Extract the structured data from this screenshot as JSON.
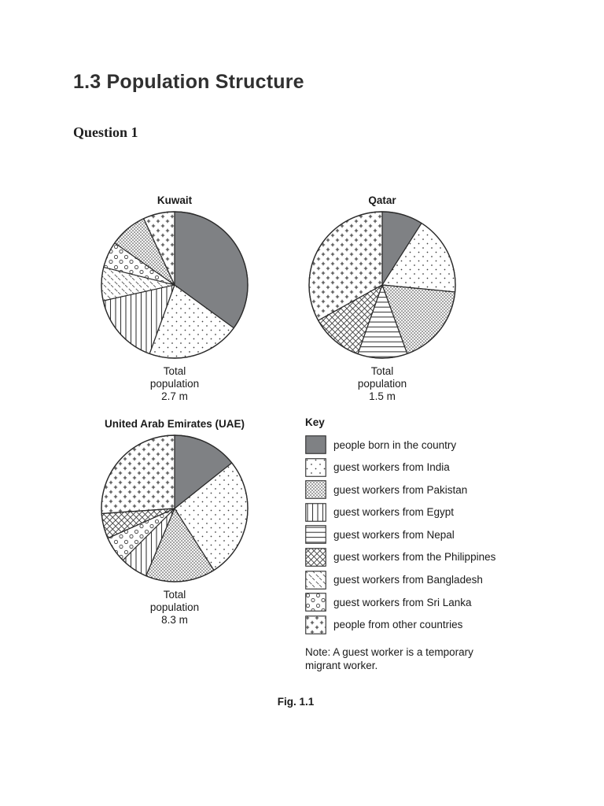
{
  "page": {
    "section_title": "1.3 Population Structure",
    "question_label": "Question 1",
    "figure_label": "Fig. 1.1"
  },
  "colors": {
    "native_fill": "#7f8184",
    "ink": "#2b2b2b",
    "background": "#ffffff"
  },
  "key": {
    "title": "Key",
    "items": [
      {
        "label": "people born in the country",
        "pattern": "solid-gray"
      },
      {
        "label": "guest workers from India",
        "pattern": "dots-sparse"
      },
      {
        "label": "guest workers from Pakistan",
        "pattern": "dashes-dense"
      },
      {
        "label": "guest workers from Egypt",
        "pattern": "vertical-lines"
      },
      {
        "label": "guest workers from Nepal",
        "pattern": "horizontal-lines"
      },
      {
        "label": "guest workers from the Philippines",
        "pattern": "crosshatch"
      },
      {
        "label": "guest workers from Bangladesh",
        "pattern": "diagonal-lines"
      },
      {
        "label": "guest workers from Sri Lanka",
        "pattern": "circles"
      },
      {
        "label": "people from other countries",
        "pattern": "plus-signs"
      }
    ],
    "note": "Note: A guest worker is a temporary migrant worker."
  },
  "chart_data": [
    {
      "type": "pie",
      "title": "Kuwait",
      "total_caption": [
        "Total",
        "population",
        "2.7 m"
      ],
      "total_population_millions": 2.7,
      "start_angle_deg": 0,
      "direction": "clockwise",
      "segments": [
        {
          "label": "people born in the country",
          "pattern": "solid-gray",
          "degrees": 126,
          "percent": 35
        },
        {
          "label": "guest workers from India",
          "pattern": "dots-sparse",
          "degrees": 74,
          "percent": 20.5
        },
        {
          "label": "guest workers from Egypt",
          "pattern": "vertical-lines",
          "degrees": 57.5,
          "percent": 16
        },
        {
          "label": "guest workers from Bangladesh",
          "pattern": "diagonal-lines",
          "degrees": 26.5,
          "percent": 7.5
        },
        {
          "label": "guest workers from Sri Lanka",
          "pattern": "circles",
          "degrees": 21,
          "percent": 6
        },
        {
          "label": "guest workers from Pakistan",
          "pattern": "dashes-dense",
          "degrees": 30,
          "percent": 8
        },
        {
          "label": "people from other countries",
          "pattern": "plus-signs",
          "degrees": 25,
          "percent": 7
        }
      ]
    },
    {
      "type": "pie",
      "title": "Qatar",
      "total_caption": [
        "Total",
        "population",
        "1.5 m"
      ],
      "total_population_millions": 1.5,
      "start_angle_deg": 0,
      "direction": "clockwise",
      "segments": [
        {
          "label": "people born in the country",
          "pattern": "solid-gray",
          "degrees": 32.5,
          "percent": 9
        },
        {
          "label": "guest workers from India",
          "pattern": "dots-sparse",
          "degrees": 63,
          "percent": 17.5
        },
        {
          "label": "guest workers from Pakistan",
          "pattern": "dashes-dense",
          "degrees": 64.5,
          "percent": 18
        },
        {
          "label": "guest workers from Nepal",
          "pattern": "horizontal-lines",
          "degrees": 39.5,
          "percent": 11
        },
        {
          "label": "guest workers from the Philippines",
          "pattern": "crosshatch",
          "degrees": 41.5,
          "percent": 11.5
        },
        {
          "label": "people from other countries",
          "pattern": "plus-signs",
          "degrees": 119,
          "percent": 33
        }
      ]
    },
    {
      "type": "pie",
      "title": "United Arab Emirates (UAE)",
      "total_caption": [
        "Total",
        "population",
        "8.3 m"
      ],
      "total_population_millions": 8.3,
      "start_angle_deg": 0,
      "direction": "clockwise",
      "segments": [
        {
          "label": "people born in the country",
          "pattern": "solid-gray",
          "degrees": 51.5,
          "percent": 14.5
        },
        {
          "label": "guest workers from India",
          "pattern": "dots-sparse",
          "degrees": 96,
          "percent": 26.5
        },
        {
          "label": "guest workers from Pakistan",
          "pattern": "dashes-dense",
          "degrees": 55.5,
          "percent": 15.5
        },
        {
          "label": "guest workers from Egypt",
          "pattern": "vertical-lines",
          "degrees": 22,
          "percent": 6
        },
        {
          "label": "guest workers from Sri Lanka",
          "pattern": "circles",
          "degrees": 21,
          "percent": 6
        },
        {
          "label": "guest workers from the Philippines",
          "pattern": "crosshatch",
          "degrees": 20,
          "percent": 5.5
        },
        {
          "label": "people from other countries",
          "pattern": "plus-signs",
          "degrees": 94,
          "percent": 26
        }
      ]
    }
  ]
}
